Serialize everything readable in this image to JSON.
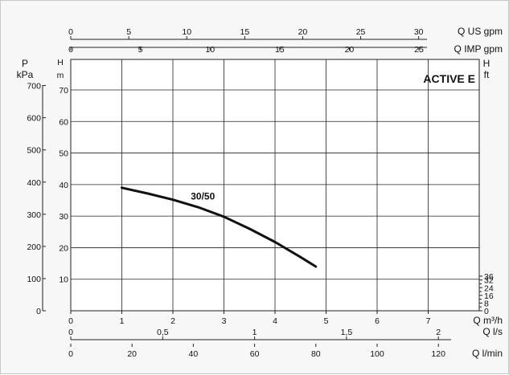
{
  "chart_data": {
    "type": "line",
    "title": "ACTIVE E",
    "series": [
      {
        "name": "30/50",
        "x": [
          1.0,
          1.5,
          2.0,
          2.5,
          3.0,
          3.5,
          4.0,
          4.5,
          4.8
        ],
        "y": [
          39.0,
          37.2,
          35.2,
          32.8,
          29.8,
          26.0,
          21.8,
          17.0,
          14.0
        ]
      }
    ],
    "primary_x": {
      "unit": "Q m³/h",
      "min": 0,
      "max": 7,
      "ticks": [
        0,
        1,
        2,
        3,
        4,
        5,
        6,
        7
      ],
      "grid": true
    },
    "primary_y": {
      "unit": "H m",
      "min": 0,
      "max": 70,
      "ticks": [
        0,
        10,
        20,
        30,
        40,
        50,
        60,
        70
      ],
      "grid": true
    },
    "top_axes": [
      {
        "unit": "Q US gpm",
        "per_m3h": 4.4029,
        "ticks": [
          0,
          5,
          10,
          15,
          20,
          25,
          30
        ],
        "labels": [
          "0",
          "5",
          "10",
          "15",
          "20",
          "25",
          "30"
        ]
      },
      {
        "unit": "Q IMP gpm",
        "per_m3h": 3.6662,
        "ticks": [
          0,
          5,
          10,
          15,
          20,
          25
        ],
        "labels": [
          "0",
          "5",
          "10",
          "15",
          "20",
          "25"
        ]
      }
    ],
    "bottom_axes": [
      {
        "unit": "Q l/s",
        "per_m3h": 0.27778,
        "ticks": [
          0,
          0.5,
          1,
          1.5,
          2
        ],
        "labels": [
          "0",
          "0,5",
          "1",
          "1,5",
          "2"
        ]
      },
      {
        "unit": "Q l/min",
        "per_m3h": 16.6667,
        "ticks": [
          0,
          20,
          40,
          60,
          80,
          100,
          120
        ],
        "labels": [
          "0",
          "20",
          "40",
          "60",
          "80",
          "100",
          "120"
        ]
      }
    ],
    "left_axes": [
      {
        "unit_top": "P",
        "unit_bottom": "kPa",
        "per_m": 9.80665,
        "ticks": [
          0,
          100,
          200,
          300,
          400,
          500,
          600,
          700
        ],
        "labels": [
          "0",
          "100",
          "200",
          "300",
          "400",
          "500",
          "600",
          "700"
        ]
      }
    ],
    "right_axes": [
      {
        "unit_top": "H",
        "unit_bottom": "ft",
        "per_m": 3.28084,
        "ticks": [
          0,
          8,
          16,
          24,
          32,
          36
        ],
        "labels": [
          "0",
          "8",
          "16",
          "24",
          "32",
          "36"
        ]
      }
    ],
    "primary_y_unit_top": "H",
    "primary_y_unit_bottom": "m"
  }
}
